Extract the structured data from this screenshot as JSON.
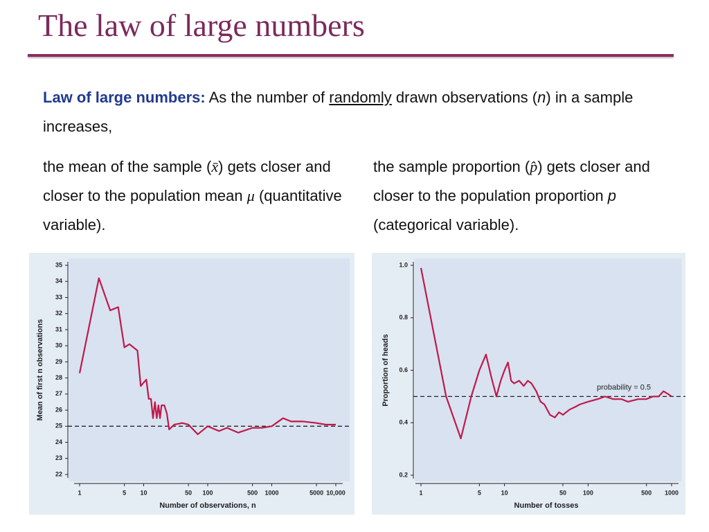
{
  "header": {
    "title": "The law of large numbers"
  },
  "intro": {
    "term": "Law of large numbers:",
    "text1": "As the number of",
    "underlined": "randomly",
    "text2": "drawn observations (",
    "n": "n",
    "text3": ") in a sample increases,"
  },
  "columns": [
    {
      "text1": "the mean of the sample (",
      "symbol": "x̄",
      "text2": ") gets closer and closer to the population mean",
      "symbol2": "μ",
      "text3": "(quantitative variable)."
    },
    {
      "text1": "the sample proportion (",
      "symbol": "p̂",
      "text2": ") gets closer and closer to the population proportion",
      "symbol2": "p",
      "text3": "(categorical variable)."
    }
  ],
  "chart_data": [
    {
      "type": "line",
      "xscale": "log",
      "color": "#c0184a",
      "xlabel": "Number of observations, n",
      "ylabel": "Mean of first n observations",
      "x": [
        1,
        2,
        3,
        4,
        5,
        6,
        8,
        9,
        11,
        12,
        13,
        14,
        15,
        16,
        17,
        18,
        19,
        21,
        23,
        25,
        30,
        40,
        50,
        70,
        100,
        150,
        200,
        300,
        500,
        700,
        1000,
        1500,
        2000,
        3000,
        5000,
        7000,
        10000
      ],
      "values": [
        28.3,
        34.2,
        32.2,
        32.4,
        29.9,
        30.1,
        29.7,
        27.5,
        27.9,
        26.7,
        26.7,
        25.5,
        26.5,
        25.5,
        26.3,
        25.5,
        26.3,
        26.3,
        25.8,
        24.8,
        25.1,
        25.2,
        25.1,
        24.5,
        25.0,
        24.7,
        24.9,
        24.6,
        24.9,
        24.9,
        25.0,
        25.5,
        25.3,
        25.3,
        25.2,
        25.1,
        25.1
      ],
      "reference_line": 25,
      "xlim": [
        1,
        10000
      ],
      "xticks": [
        1,
        5,
        10,
        50,
        100,
        500,
        1000,
        5000,
        {
          "value": 10000,
          "label": "10,000"
        }
      ],
      "ylim": [
        22,
        35
      ],
      "yticks": [
        22,
        23,
        24,
        25,
        26,
        27,
        28,
        29,
        30,
        31,
        32,
        33,
        34,
        35
      ]
    },
    {
      "type": "line",
      "xscale": "log",
      "color": "#c0184a",
      "xlabel": "Number of tosses",
      "ylabel": "Proportion of heads",
      "x": [
        1,
        2,
        3,
        4,
        5,
        6,
        7,
        8,
        9,
        10,
        11,
        12,
        13,
        15,
        17,
        19,
        21,
        24,
        27,
        30,
        35,
        40,
        45,
        50,
        60,
        70,
        80,
        100,
        130,
        160,
        200,
        250,
        300,
        400,
        500,
        600,
        700,
        800,
        900,
        1000
      ],
      "values": [
        0.99,
        0.5,
        0.34,
        0.5,
        0.6,
        0.66,
        0.57,
        0.5,
        0.56,
        0.6,
        0.63,
        0.56,
        0.55,
        0.56,
        0.54,
        0.56,
        0.55,
        0.52,
        0.48,
        0.47,
        0.43,
        0.42,
        0.44,
        0.43,
        0.45,
        0.46,
        0.47,
        0.48,
        0.49,
        0.5,
        0.49,
        0.49,
        0.48,
        0.49,
        0.49,
        0.5,
        0.5,
        0.52,
        0.51,
        0.5
      ],
      "reference_line": 0.5,
      "annotation": "probability = 0.5",
      "xlim": [
        1,
        1000
      ],
      "xticks": [
        1,
        5,
        10,
        50,
        100,
        500,
        1000
      ],
      "ylim": [
        0.2,
        1.0
      ],
      "yticks": [
        0.2,
        0.4,
        0.6,
        0.8,
        {
          "value": 1.0,
          "label": "1.0"
        }
      ]
    }
  ]
}
